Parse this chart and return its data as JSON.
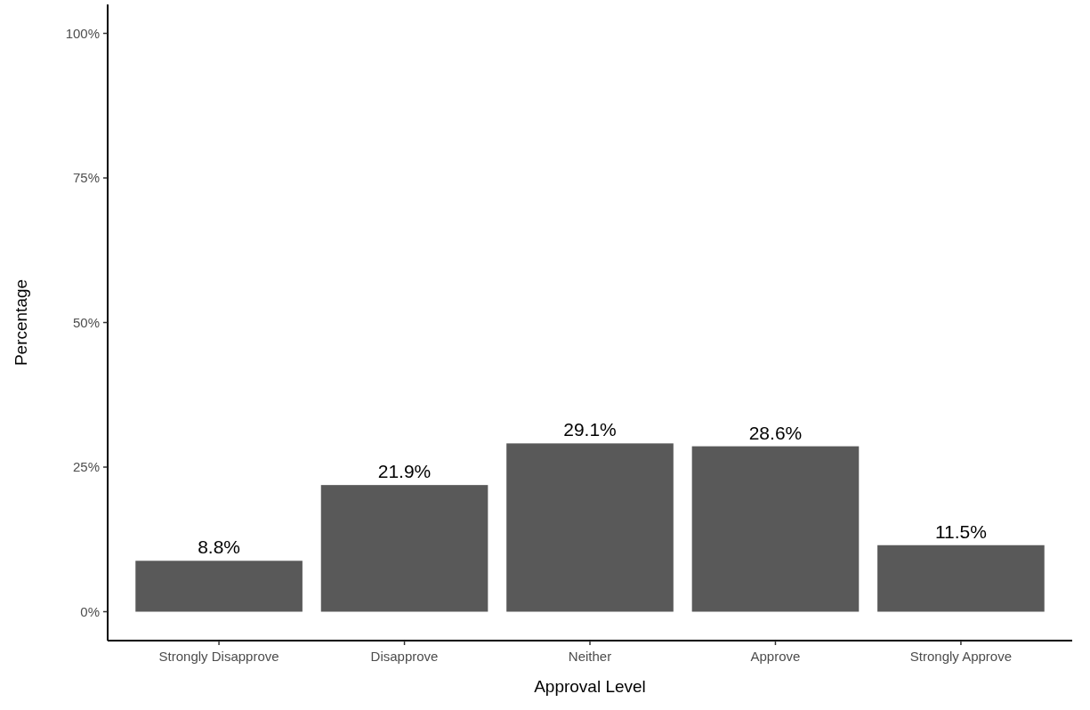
{
  "chart_data": {
    "type": "bar",
    "xlabel": "Approval Level",
    "ylabel": "Percentage",
    "categories": [
      "Strongly Disapprove",
      "Disapprove",
      "Neither",
      "Approve",
      "Strongly Approve"
    ],
    "values": [
      8.8,
      21.9,
      29.1,
      28.6,
      11.5
    ],
    "value_labels": [
      "8.8%",
      "21.9%",
      "29.1%",
      "28.6%",
      "11.5%"
    ],
    "color": "#595959",
    "ylim": [
      -5,
      105
    ],
    "yticks": [
      {
        "value": 0,
        "label": "0%"
      },
      {
        "value": 25,
        "label": "25%"
      },
      {
        "value": 50,
        "label": "50%"
      },
      {
        "value": 75,
        "label": "75%"
      },
      {
        "value": 100,
        "label": "100%"
      }
    ],
    "grid": false
  }
}
